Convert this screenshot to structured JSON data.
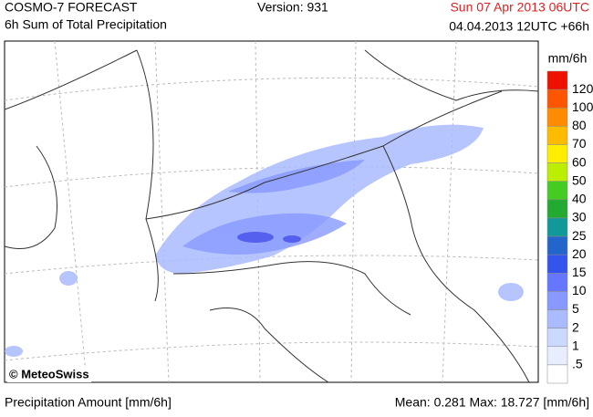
{
  "header": {
    "product": "COSMO-7 FORECAST",
    "subtitle": "6h Sum of Total Precipitation",
    "version": "Version: 931",
    "valid_time": "Sun 07 Apr 2013 06UTC",
    "run": "04.04.2013 12UTC +66h"
  },
  "legend": {
    "title": "mm/6h",
    "levels": [
      {
        "label": "120",
        "color": "#ee1100"
      },
      {
        "label": "100",
        "color": "#ff5500"
      },
      {
        "label": "80",
        "color": "#ff8c00"
      },
      {
        "label": "70",
        "color": "#ffbb00"
      },
      {
        "label": "60",
        "color": "#ffee00"
      },
      {
        "label": "50",
        "color": "#bbee00"
      },
      {
        "label": "40",
        "color": "#44cc22"
      },
      {
        "label": "30",
        "color": "#22aa33"
      },
      {
        "label": "25",
        "color": "#119999"
      },
      {
        "label": "20",
        "color": "#2266cc"
      },
      {
        "label": "15",
        "color": "#3355ee"
      },
      {
        "label": "10",
        "color": "#6677ff"
      },
      {
        "label": "5",
        "color": "#8899ff"
      },
      {
        "label": "2",
        "color": "#aabbff"
      },
      {
        "label": "1",
        "color": "#ccd9ff"
      },
      {
        "label": ".5",
        "color": "#e8eeff"
      }
    ]
  },
  "map": {
    "credit": "© MeteoSwiss"
  },
  "footer": {
    "quantity": "Precipitation Amount [mm/6h]",
    "stats": "Mean:  0.281 Max: 18.727 [mm/6h]"
  }
}
